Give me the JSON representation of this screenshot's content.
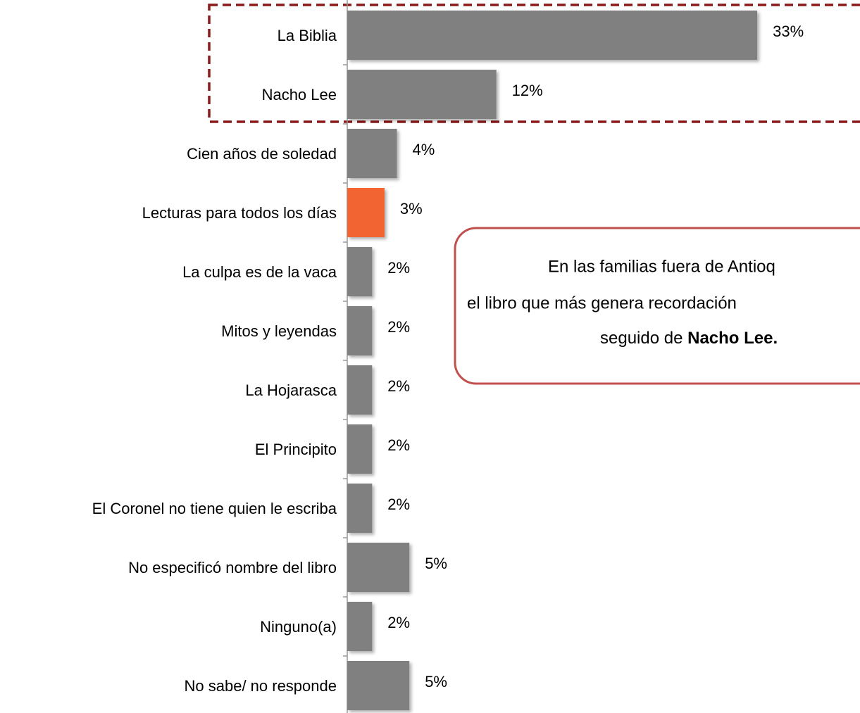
{
  "chart_data": {
    "type": "barh",
    "categories": [
      "La Biblia",
      "Nacho Lee",
      "Cien años de soledad",
      "Lecturas para todos los días",
      "La culpa es de la vaca",
      "Mitos y leyendas",
      "La Hojarasca",
      "El Principito",
      "El Coronel no tiene quien le escriba",
      "No especificó nombre del libro",
      "Ninguno(a)",
      "No sabe/ no responde"
    ],
    "values": [
      33,
      12,
      4,
      3,
      2,
      2,
      2,
      2,
      2,
      5,
      2,
      5
    ],
    "value_labels": [
      "33%",
      "12%",
      "4%",
      "3%",
      "2%",
      "2%",
      "2%",
      "2%",
      "2%",
      "5%",
      "2%",
      "5%"
    ],
    "colors": [
      "#808080",
      "#808080",
      "#808080",
      "#f26530",
      "#808080",
      "#808080",
      "#808080",
      "#808080",
      "#808080",
      "#808080",
      "#808080",
      "#808080"
    ]
  },
  "callout": {
    "lines": [
      "En las familias fuera de Antioq",
      "el libro que más genera recordación"
    ],
    "last_line": "seguido de ",
    "last_line_bold": "Nacho Lee."
  }
}
